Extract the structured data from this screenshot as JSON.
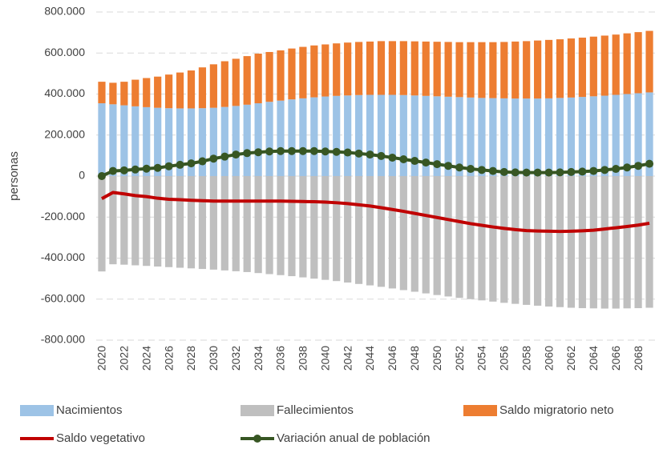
{
  "chart_data": {
    "type": "bar",
    "stacked": true,
    "y_label": "personas",
    "categories": [
      "2020",
      null,
      "2022",
      null,
      "2024",
      null,
      "2026",
      null,
      "2028",
      null,
      "2030",
      null,
      "2032",
      null,
      "2034",
      null,
      "2036",
      null,
      "2038",
      null,
      "2040",
      null,
      "2042",
      null,
      "2044",
      null,
      "2046",
      null,
      "2048",
      null,
      "2050",
      null,
      "2052",
      null,
      "2054",
      null,
      "2056",
      null,
      "2058",
      null,
      "2060",
      null,
      "2062",
      null,
      "2064",
      null,
      "2066",
      null,
      "2068",
      null
    ],
    "ylim": [
      -800000,
      800000
    ],
    "yticks": [
      {
        "value": -800000,
        "label": "-800.000"
      },
      {
        "value": -600000,
        "label": "-600.000"
      },
      {
        "value": -400000,
        "label": "-400.000"
      },
      {
        "value": -200000,
        "label": "-200.000"
      },
      0,
      {
        "value": 200000,
        "label": "200.000"
      },
      {
        "value": 400000,
        "label": "400.000"
      },
      {
        "value": 600000,
        "label": "600.000"
      },
      {
        "value": 800000,
        "label": "800.000"
      }
    ],
    "grid": true,
    "legend": "bottom",
    "series": [
      {
        "name": "Nacimientos",
        "type": "bar",
        "color": "#9dc3e6",
        "values": [
          355000,
          350000,
          345000,
          340000,
          336000,
          333000,
          331000,
          330000,
          330000,
          331000,
          333000,
          337000,
          342000,
          348000,
          355000,
          362000,
          368000,
          374000,
          379000,
          384000,
          388000,
          391000,
          393000,
          395000,
          396000,
          396000,
          396000,
          395000,
          393000,
          391000,
          389000,
          387000,
          385000,
          383000,
          381000,
          380000,
          379000,
          378000,
          378000,
          378000,
          379000,
          381000,
          383000,
          386000,
          389000,
          392000,
          396000,
          400000,
          404000,
          408000
        ]
      },
      {
        "name": "Fallecimientos",
        "type": "bar",
        "color": "#bfbfbf",
        "values": [
          -465000,
          -430000,
          -432000,
          -435000,
          -438000,
          -441000,
          -444000,
          -447000,
          -450000,
          -453000,
          -456000,
          -460000,
          -464000,
          -468000,
          -473000,
          -478000,
          -483000,
          -488000,
          -494000,
          -500000,
          -506000,
          -512000,
          -519000,
          -526000,
          -533000,
          -540000,
          -548000,
          -556000,
          -564000,
          -572000,
          -580000,
          -587000,
          -594000,
          -600000,
          -606000,
          -612000,
          -618000,
          -623000,
          -628000,
          -632000,
          -636000,
          -639000,
          -642000,
          -644000,
          -645000,
          -646000,
          -646000,
          -645000,
          -644000,
          -642000
        ]
      },
      {
        "name": "Saldo migratorio neto",
        "type": "bar",
        "color": "#ed7d31",
        "values": [
          105000,
          105000,
          115000,
          130000,
          142000,
          152000,
          164000,
          175000,
          185000,
          199000,
          212000,
          223000,
          230000,
          237000,
          242000,
          243000,
          245000,
          248000,
          251000,
          253000,
          254000,
          256000,
          258000,
          259000,
          260000,
          262000,
          262000,
          263000,
          264000,
          265000,
          266000,
          267000,
          268000,
          270000,
          272000,
          273000,
          275000,
          278000,
          280000,
          283000,
          285000,
          286000,
          288000,
          289000,
          291000,
          293000,
          294000,
          296000,
          298000,
          300000
        ]
      },
      {
        "name": "Saldo vegetativo",
        "type": "line",
        "color": "#c00000",
        "values": [
          -110000,
          -80000,
          -87000,
          -95000,
          -100000,
          -108000,
          -113000,
          -115000,
          -118000,
          -120000,
          -122000,
          -122000,
          -122000,
          -122000,
          -122000,
          -122000,
          -122000,
          -123000,
          -124000,
          -125000,
          -127000,
          -130000,
          -134000,
          -140000,
          -146000,
          -154000,
          -163000,
          -172000,
          -182000,
          -192000,
          -202000,
          -212000,
          -222000,
          -232000,
          -240000,
          -248000,
          -255000,
          -261000,
          -266000,
          -268000,
          -269000,
          -270000,
          -269000,
          -267000,
          -264000,
          -258000,
          -252000,
          -246000,
          -239000,
          -230000
        ]
      },
      {
        "name": "Variación anual de población",
        "type": "line",
        "markers": true,
        "color": "#375623",
        "values": [
          0,
          25000,
          28000,
          32000,
          36000,
          40000,
          48000,
          55000,
          62000,
          72000,
          85000,
          95000,
          105000,
          112000,
          116000,
          120000,
          122000,
          122000,
          122000,
          122000,
          120000,
          118000,
          115000,
          110000,
          105000,
          98000,
          90000,
          82000,
          74000,
          66000,
          58000,
          50000,
          42000,
          35000,
          30000,
          25000,
          20000,
          18000,
          17000,
          17000,
          17000,
          18000,
          20000,
          22000,
          25000,
          30000,
          35000,
          42000,
          50000,
          60000
        ]
      }
    ]
  }
}
